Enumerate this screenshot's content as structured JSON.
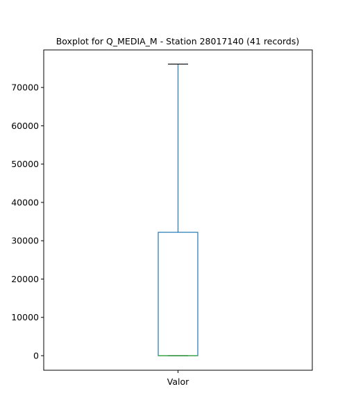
{
  "chart_data": {
    "type": "box",
    "title": "Boxplot for Q_MEDIA_M - Station 28017140 (41 records)",
    "xlabel": "",
    "ylabel": "",
    "categories": [
      "Valor"
    ],
    "ylim": [
      -3800,
      79800
    ],
    "yticks": [
      0,
      10000,
      20000,
      30000,
      40000,
      50000,
      60000,
      70000
    ],
    "grid": false,
    "box": {
      "whisker_low": 0,
      "q1": 0,
      "median": 0,
      "q3": 32200,
      "whisker_high": 76100
    },
    "colors": {
      "box": "#1f77b4",
      "median": "#2ca02c",
      "cap": "#000000",
      "axis": "#000000"
    }
  }
}
